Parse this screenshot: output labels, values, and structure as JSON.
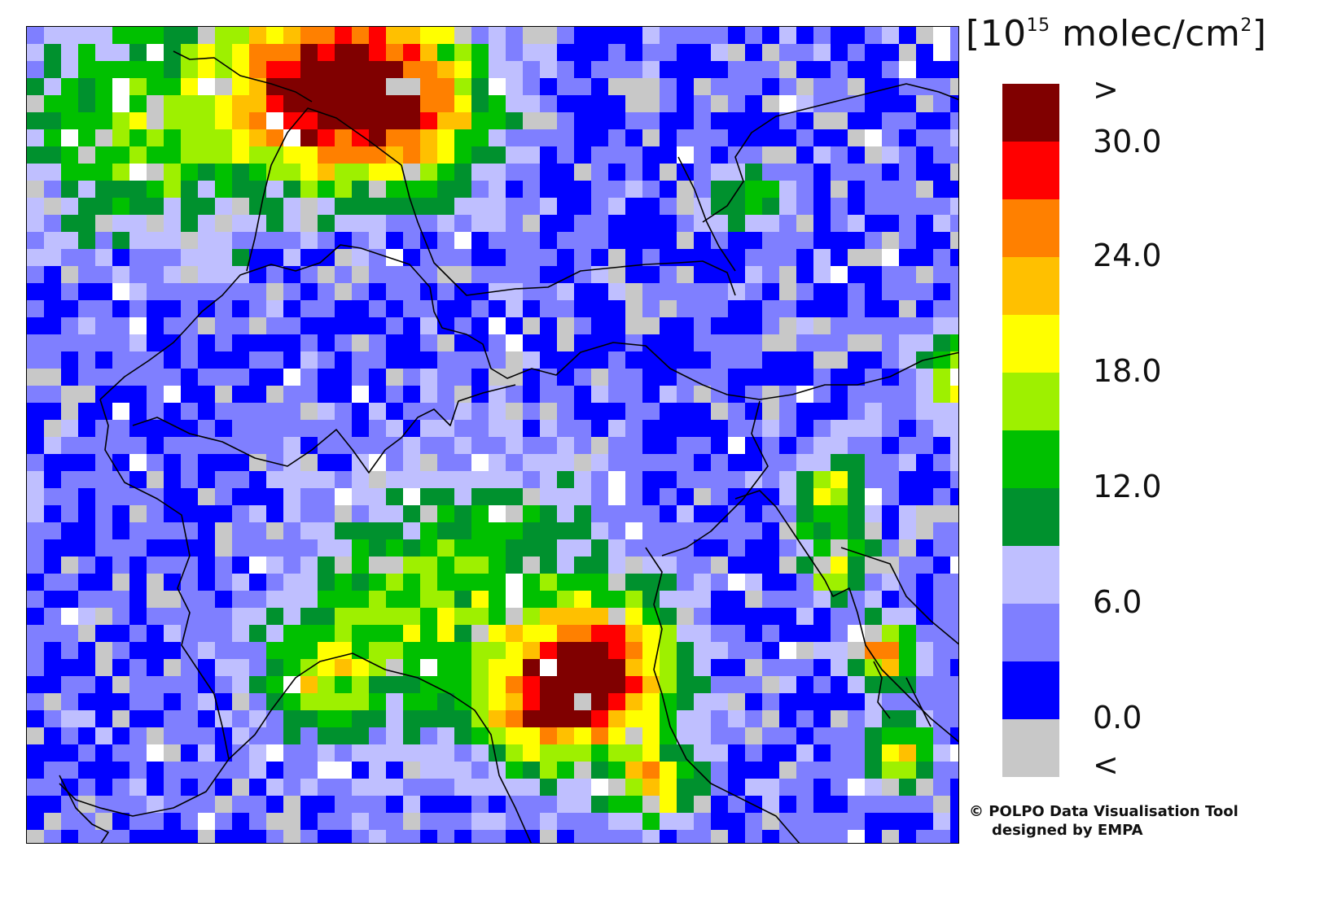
{
  "legend": {
    "unit_base": "10",
    "unit_exponent": "15",
    "unit_rest": "molec/cm",
    "unit_power": "2",
    "colors": [
      "#c8c8c8",
      "#0000ff",
      "#7f7fff",
      "#bfbfff",
      "#00912e",
      "#00c000",
      "#9ef000",
      "#ffff00",
      "#ffc000",
      "#ff8000",
      "#ff0000",
      "#800000"
    ],
    "labels": {
      "gt": ">",
      "v30": "30.0",
      "v24": "24.0",
      "v18": "18.0",
      "v12": "12.0",
      "v6": "6.0",
      "v0": "0.0",
      "lt": "<"
    }
  },
  "credit": {
    "line1": "© POLPO Data Visualisation Tool",
    "line2": "designed by EMPA"
  }
}
